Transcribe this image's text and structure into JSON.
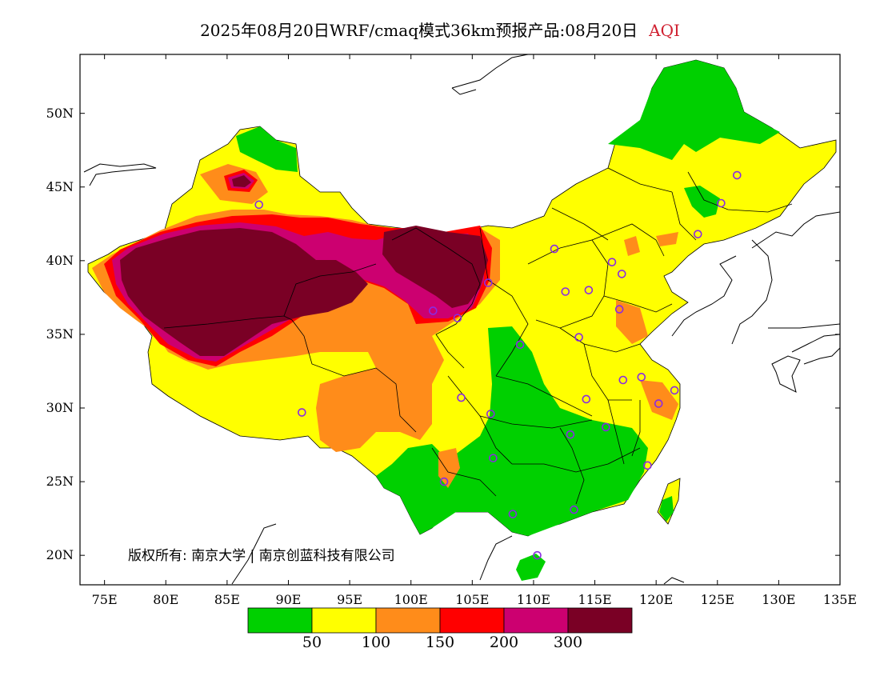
{
  "header": {
    "title": "2025年08月20日WRF/cmaq模式36km预报产品:08月20日",
    "variable": "AQI"
  },
  "copyright": "版权所有: 南京大学 | 南京创蓝科技有限公司",
  "axes": {
    "lon_range": [
      73,
      135
    ],
    "lat_range": [
      18,
      54
    ],
    "lon_ticks": [
      "75E",
      "80E",
      "85E",
      "90E",
      "95E",
      "100E",
      "105E",
      "110E",
      "115E",
      "120E",
      "125E",
      "130E",
      "135E"
    ],
    "lat_ticks": [
      "50N",
      "45N",
      "40N",
      "35N",
      "30N",
      "25N",
      "20N"
    ]
  },
  "colorbar": {
    "colors": [
      "#00d000",
      "#ffff00",
      "#ff8c1a",
      "#ff0000",
      "#cc0070",
      "#7a0025"
    ],
    "boundaries": [
      "50",
      "100",
      "150",
      "200",
      "300"
    ]
  },
  "stations": [
    {
      "lon": 87.6,
      "lat": 43.8
    },
    {
      "lon": 91.1,
      "lat": 29.7
    },
    {
      "lon": 101.8,
      "lat": 36.6
    },
    {
      "lon": 103.8,
      "lat": 36.1
    },
    {
      "lon": 106.3,
      "lat": 38.5
    },
    {
      "lon": 104.1,
      "lat": 30.7
    },
    {
      "lon": 106.5,
      "lat": 29.6
    },
    {
      "lon": 106.7,
      "lat": 26.6
    },
    {
      "lon": 102.7,
      "lat": 25.0
    },
    {
      "lon": 108.9,
      "lat": 34.3
    },
    {
      "lon": 111.7,
      "lat": 40.8
    },
    {
      "lon": 112.6,
      "lat": 37.9
    },
    {
      "lon": 114.5,
      "lat": 38.0
    },
    {
      "lon": 116.4,
      "lat": 39.9
    },
    {
      "lon": 117.2,
      "lat": 39.1
    },
    {
      "lon": 117.0,
      "lat": 36.7
    },
    {
      "lon": 113.7,
      "lat": 34.8
    },
    {
      "lon": 114.3,
      "lat": 30.6
    },
    {
      "lon": 117.3,
      "lat": 31.9
    },
    {
      "lon": 118.8,
      "lat": 32.1
    },
    {
      "lon": 120.2,
      "lat": 30.3
    },
    {
      "lon": 121.5,
      "lat": 31.2
    },
    {
      "lon": 115.9,
      "lat": 28.7
    },
    {
      "lon": 113.0,
      "lat": 28.2
    },
    {
      "lon": 119.3,
      "lat": 26.1
    },
    {
      "lon": 113.3,
      "lat": 23.1
    },
    {
      "lon": 108.3,
      "lat": 22.8
    },
    {
      "lon": 110.3,
      "lat": 20.0
    },
    {
      "lon": 123.4,
      "lat": 41.8
    },
    {
      "lon": 125.3,
      "lat": 43.9
    },
    {
      "lon": 126.6,
      "lat": 45.8
    }
  ]
}
